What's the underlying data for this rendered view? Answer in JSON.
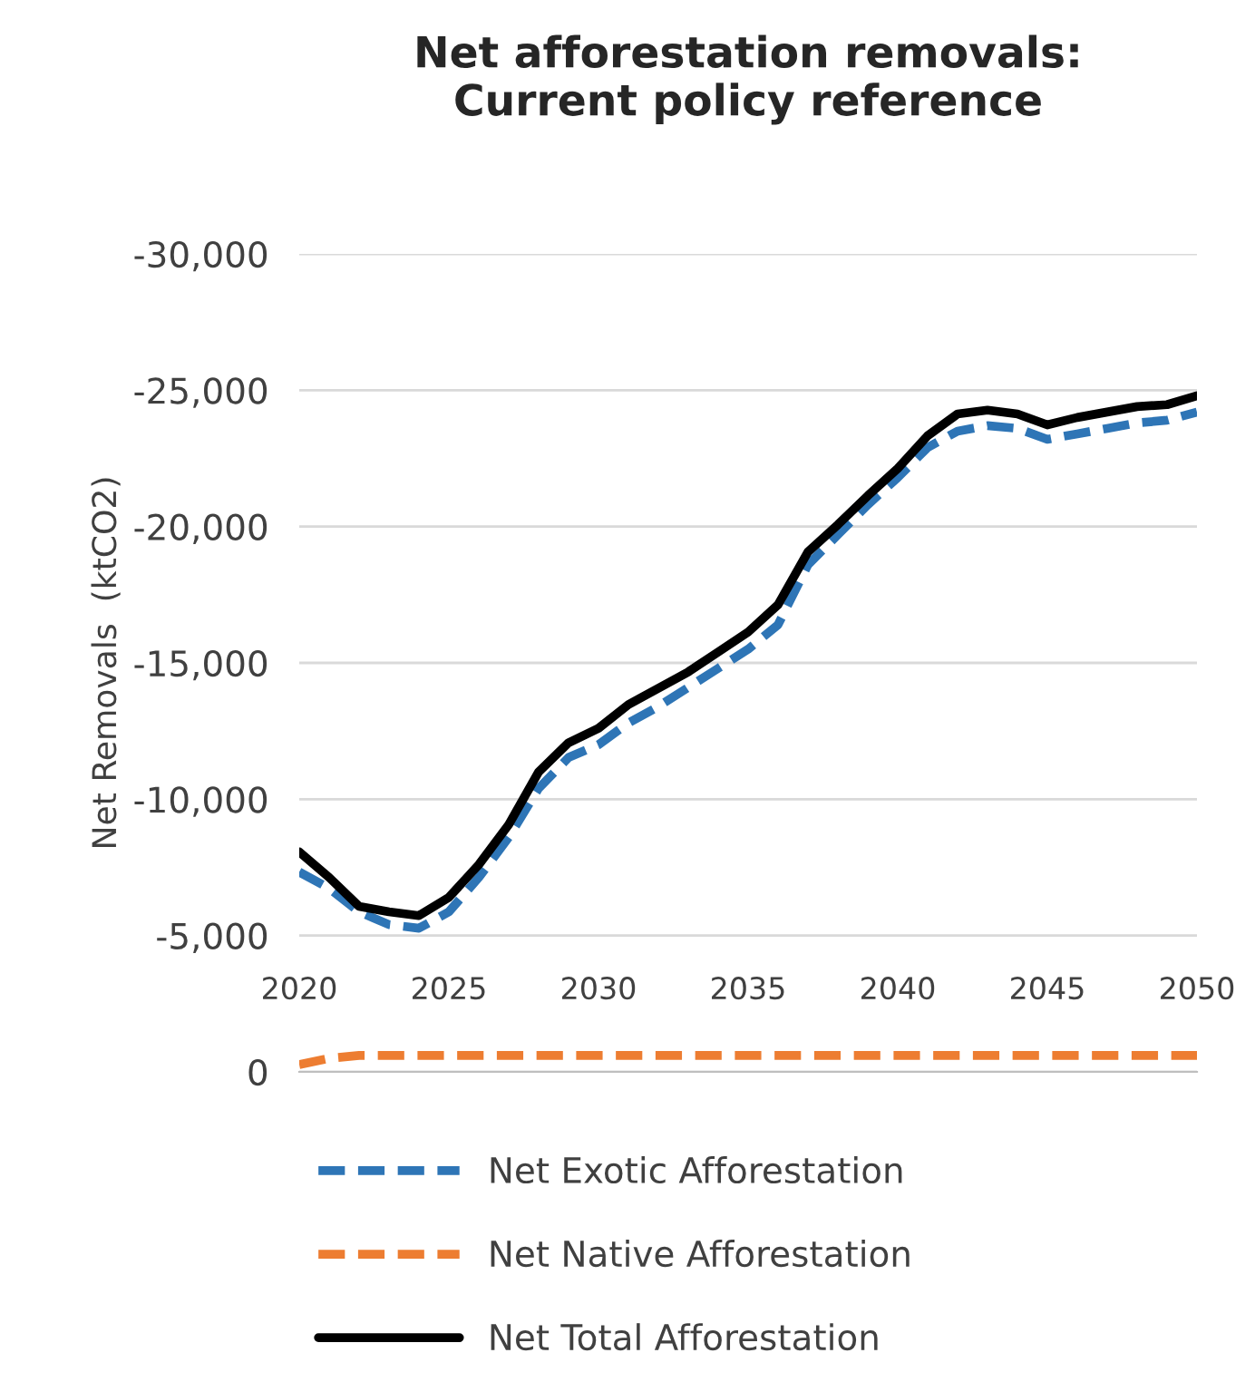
{
  "chart_data": {
    "type": "line",
    "title": "Net afforestation removals:\nCurrent policy reference",
    "ylabel": "Net Removals  (ktCO2)",
    "x": [
      2020,
      2021,
      2022,
      2023,
      2024,
      2025,
      2026,
      2027,
      2028,
      2029,
      2030,
      2031,
      2032,
      2033,
      2034,
      2035,
      2036,
      2037,
      2038,
      2039,
      2040,
      2041,
      2042,
      2043,
      2044,
      2045,
      2046,
      2047,
      2048,
      2049,
      2050
    ],
    "series": [
      {
        "name": "Net Exotic Afforestation",
        "color": "#2e75b6",
        "line_style": "dashed",
        "values": [
          -7330,
          -6730,
          -5870,
          -5400,
          -5270,
          -5870,
          -7130,
          -8600,
          -10400,
          -11530,
          -12000,
          -12800,
          -13400,
          -14100,
          -14800,
          -15500,
          -16400,
          -18600,
          -19700,
          -20800,
          -21800,
          -22900,
          -23500,
          -23700,
          -23600,
          -23200,
          -23400,
          -23600,
          -23800,
          -23900,
          -24200
        ]
      },
      {
        "name": "Net Native Afforestation",
        "color": "#ed7d31",
        "line_style": "dashed",
        "values": [
          -270,
          -500,
          -600,
          -600,
          -600,
          -600,
          -600,
          -600,
          -600,
          -600,
          -600,
          -600,
          -600,
          -600,
          -600,
          -600,
          -600,
          -600,
          -600,
          -600,
          -600,
          -600,
          -600,
          -600,
          -600,
          -600,
          -600,
          -600,
          -600,
          -600,
          -600
        ]
      },
      {
        "name": "Net Total Afforestation",
        "color": "#000000",
        "line_style": "solid",
        "values": [
          -8070,
          -7130,
          -6070,
          -5870,
          -5730,
          -6400,
          -7600,
          -9070,
          -11000,
          -12070,
          -12600,
          -13470,
          -14070,
          -14670,
          -15400,
          -16130,
          -17130,
          -19070,
          -20070,
          -21130,
          -22130,
          -23330,
          -24130,
          -24270,
          -24130,
          -23730,
          -24000,
          -24200,
          -24400,
          -24470,
          -24800
        ]
      }
    ],
    "xlim": [
      2020,
      2050
    ],
    "xticks": [
      2020,
      2025,
      2030,
      2035,
      2040,
      2045,
      2050
    ],
    "ylim": [
      0,
      -30000
    ],
    "yticks": [
      {
        "value": -30000,
        "label": "-30,000"
      },
      {
        "value": -25000,
        "label": "-25,000"
      },
      {
        "value": -20000,
        "label": "-20,000"
      },
      {
        "value": -15000,
        "label": "-15,000"
      },
      {
        "value": -10000,
        "label": "-10,000"
      },
      {
        "value": -5000,
        "label": "-5,000"
      },
      0
    ],
    "grid": "y",
    "legend": "bottom",
    "marker": "none"
  }
}
